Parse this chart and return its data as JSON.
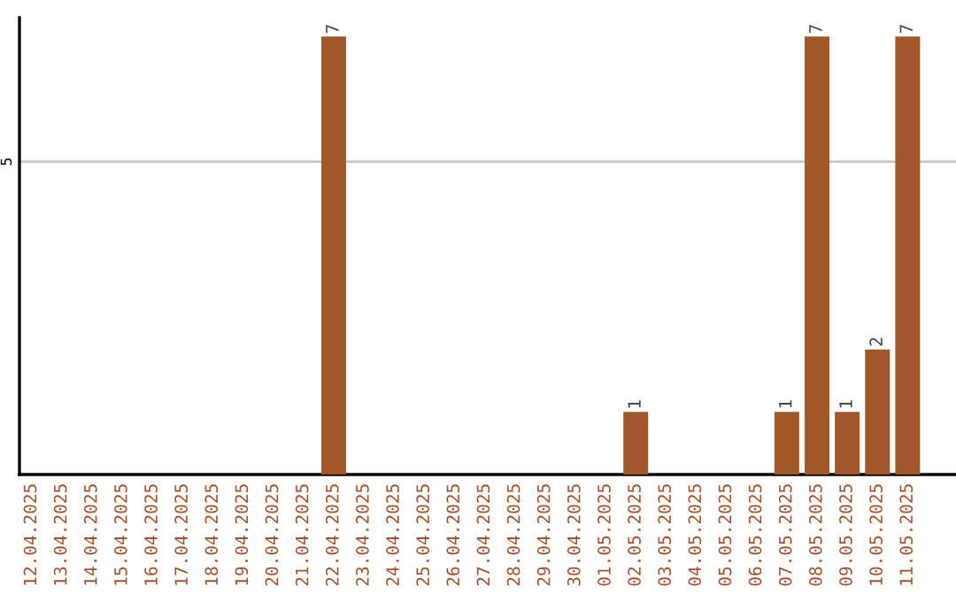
{
  "chart_data": {
    "type": "bar",
    "categories": [
      "12.04.2025",
      "13.04.2025",
      "14.04.2025",
      "15.04.2025",
      "16.04.2025",
      "17.04.2025",
      "18.04.2025",
      "19.04.2025",
      "20.04.2025",
      "21.04.2025",
      "22.04.2025",
      "23.04.2025",
      "24.04.2025",
      "25.04.2025",
      "26.04.2025",
      "27.04.2025",
      "28.04.2025",
      "29.04.2025",
      "30.04.2025",
      "01.05.2025",
      "02.05.2025",
      "03.05.2025",
      "04.05.2025",
      "05.05.2025",
      "06.05.2025",
      "07.05.2025",
      "08.05.2025",
      "09.05.2025",
      "10.05.2025",
      "11.05.2025"
    ],
    "values": [
      0,
      0,
      0,
      0,
      0,
      0,
      0,
      0,
      0,
      0,
      7,
      0,
      0,
      0,
      0,
      0,
      0,
      0,
      0,
      0,
      1,
      0,
      0,
      0,
      0,
      1,
      7,
      1,
      2,
      7
    ],
    "value_labels": [
      null,
      null,
      null,
      null,
      null,
      null,
      null,
      null,
      null,
      null,
      "7",
      null,
      null,
      null,
      null,
      null,
      null,
      null,
      null,
      null,
      "1",
      null,
      null,
      null,
      null,
      "1",
      "7",
      "1",
      "2",
      "7"
    ],
    "color": "#a0582a",
    "ylim": [
      0,
      7.3
    ],
    "yticks": [
      5
    ],
    "grid": "y"
  }
}
